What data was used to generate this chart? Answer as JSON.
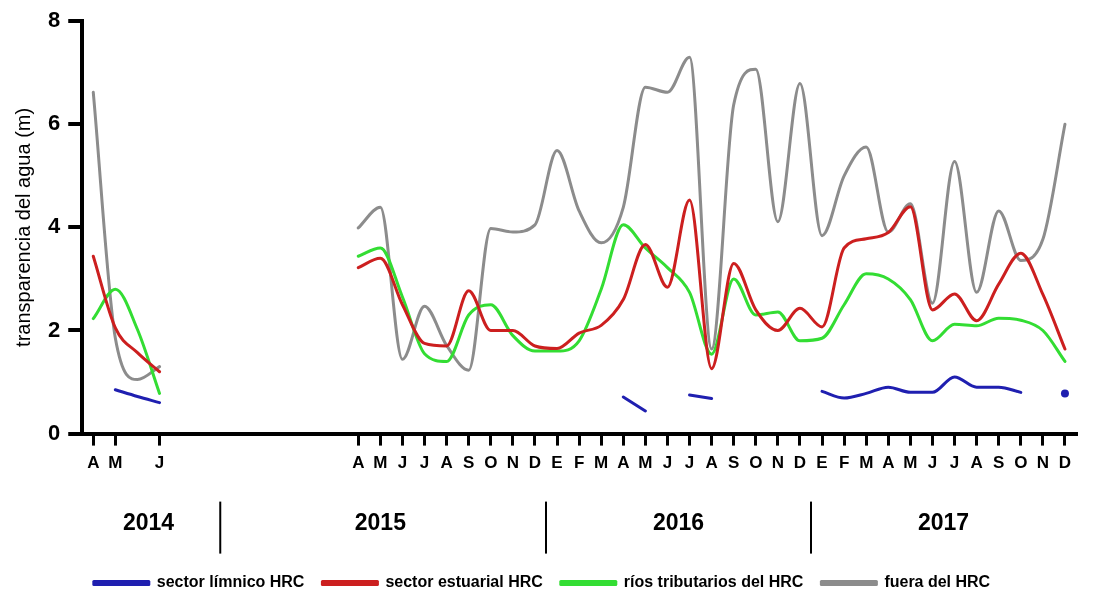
{
  "chart_data": {
    "type": "line",
    "ylabel": "transparencia del agua (m)",
    "categories": [
      "A",
      "M",
      null,
      "J",
      null,
      null,
      null,
      null,
      null,
      null,
      null,
      null,
      "A",
      "M",
      "J",
      "J",
      "A",
      "S",
      "O",
      "N",
      "D",
      "E",
      "F",
      "M",
      "A",
      "M",
      "J",
      "J",
      "A",
      "S",
      "O",
      "N",
      "D",
      "E",
      "F",
      "M",
      "A",
      "M",
      "J",
      "J",
      "A",
      "S",
      "O",
      "N",
      "D"
    ],
    "ylim": [
      0,
      8
    ],
    "yticks": [
      0,
      2,
      4,
      6,
      8
    ],
    "series": [
      {
        "name": "sector límnico HRC",
        "color": "#1f1fb0",
        "values": [
          null,
          0.85,
          0.72,
          0.6,
          null,
          null,
          null,
          null,
          null,
          null,
          null,
          null,
          null,
          null,
          null,
          null,
          null,
          null,
          null,
          null,
          null,
          null,
          null,
          null,
          0.71,
          0.44,
          null,
          0.75,
          0.68,
          null,
          null,
          null,
          null,
          0.82,
          0.69,
          0.78,
          0.9,
          0.8,
          0.8,
          1.1,
          0.9,
          0.9,
          0.8,
          null,
          0.78
        ]
      },
      {
        "name": "sector estuarial HRC",
        "color": "#cc1f1f",
        "values": [
          3.44,
          2.05,
          1.57,
          1.2,
          null,
          null,
          null,
          null,
          null,
          null,
          null,
          null,
          3.22,
          3.4,
          2.5,
          1.75,
          1.7,
          2.77,
          2.0,
          2.0,
          1.7,
          1.65,
          1.95,
          2.1,
          2.6,
          3.67,
          2.84,
          4.53,
          1.26,
          3.3,
          2.4,
          2.0,
          2.43,
          2.07,
          3.6,
          3.78,
          3.9,
          4.4,
          2.4,
          2.71,
          2.19,
          2.9,
          3.5,
          2.7,
          1.64
        ]
      },
      {
        "name": "ríos tributarios del HRC",
        "color": "#33dd33",
        "values": [
          2.23,
          2.8,
          2.02,
          0.78,
          null,
          null,
          null,
          null,
          null,
          null,
          null,
          null,
          3.44,
          3.6,
          2.65,
          1.55,
          1.4,
          2.3,
          2.5,
          1.9,
          1.6,
          1.6,
          1.8,
          2.8,
          4.05,
          3.6,
          3.22,
          2.74,
          1.54,
          3.0,
          2.3,
          2.36,
          1.8,
          1.85,
          2.5,
          3.1,
          3.0,
          2.6,
          1.8,
          2.12,
          2.09,
          2.24,
          2.2,
          2.0,
          1.4
        ]
      },
      {
        "name": "fuera del HRC",
        "color": "#8c8c8c",
        "values": [
          6.62,
          1.85,
          1.05,
          1.3,
          null,
          null,
          null,
          null,
          null,
          null,
          null,
          null,
          3.99,
          4.39,
          1.44,
          2.47,
          1.71,
          1.23,
          3.98,
          3.91,
          4.05,
          5.49,
          4.32,
          3.7,
          4.39,
          6.72,
          6.62,
          7.3,
          1.64,
          6.38,
          7.07,
          4.11,
          6.79,
          3.84,
          5.0,
          5.56,
          3.91,
          4.46,
          2.53,
          5.28,
          2.74,
          4.32,
          3.36,
          3.77,
          6.0
        ]
      }
    ],
    "annotations": [
      "2014",
      "2015",
      "2016",
      "2017"
    ],
    "grid": false,
    "legend": "bottom",
    "marker": "none",
    "line_style": "solid"
  }
}
